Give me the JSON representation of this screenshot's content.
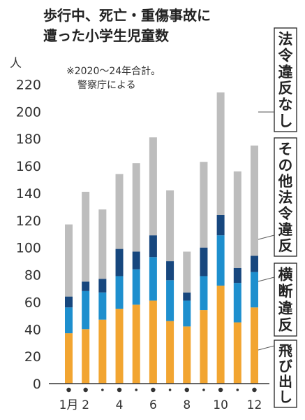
{
  "chart_data": {
    "type": "bar",
    "stacked": true,
    "title_lines": [
      "歩行中、死亡・重傷事故に",
      "遭った小学生児童数"
    ],
    "y_unit": "人",
    "note_lines": [
      "※2020～24年合計。",
      "警察庁による"
    ],
    "ylim": [
      0,
      220
    ],
    "y_ticks": [
      "0",
      "20",
      "40",
      "60",
      "80",
      "100",
      "120",
      "140",
      "160",
      "180",
      "200",
      "220"
    ],
    "categories": [
      "1",
      "2",
      "3",
      "4",
      "5",
      "6",
      "7",
      "8",
      "9",
      "10",
      "11",
      "12"
    ],
    "x_tick_labels": [
      "1月",
      "2",
      "",
      "4",
      "",
      "6",
      "",
      "8",
      "",
      "10",
      "",
      "12"
    ],
    "series": [
      {
        "name": "飛び出し",
        "color": "#f2a531",
        "values": [
          37,
          40,
          47,
          55,
          58,
          61,
          46,
          42,
          54,
          72,
          45,
          56
        ]
      },
      {
        "name": "横断違反",
        "color": "#1e8fce",
        "values": [
          19,
          28,
          20,
          24,
          26,
          32,
          30,
          19,
          25,
          37,
          29,
          26
        ]
      },
      {
        "name": "その他法令違反",
        "color": "#17477e",
        "values": [
          8,
          7,
          10,
          20,
          13,
          16,
          14,
          6,
          21,
          15,
          11,
          12
        ]
      },
      {
        "name": "法令違反なし",
        "color": "#bdbdbd",
        "values": [
          53,
          66,
          51,
          55,
          65,
          72,
          52,
          30,
          63,
          90,
          71,
          81
        ]
      }
    ],
    "legend": "right",
    "grid": false,
    "colors": {
      "text": "#222222",
      "axis": "#333333",
      "leader": "#555555",
      "background": "#ffffff"
    }
  }
}
